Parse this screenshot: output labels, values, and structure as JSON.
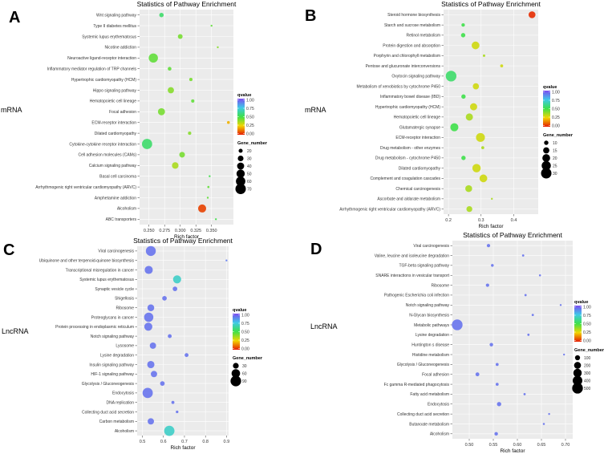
{
  "colorbar": {
    "low": "#e51c00",
    "mid1": "#f2d600",
    "mid2": "#3ee04a",
    "mid3": "#3fc9e8",
    "high": "#7b4cf0"
  },
  "colors": {
    "panel_bg": "#ebebeb",
    "grid": "#ffffff",
    "text": "#333333"
  },
  "chart_data": [
    {
      "panel": "A",
      "type": "scatter",
      "title": "Statistics of Pathway Enrichment",
      "side_label": "mRNA",
      "xlabel": "Rich factor",
      "xlim": [
        0.235,
        0.385
      ],
      "xticks": [
        0.25,
        0.275,
        0.3,
        0.325,
        0.35
      ],
      "xtick_labels": [
        "0.250",
        "0.275",
        "0.300",
        "0.325",
        "0.350"
      ],
      "qvalue_title": "qvalue",
      "qvalue_ticks": [
        "1.00",
        "0.75",
        "0.50",
        "0.25",
        "0.00"
      ],
      "size_title": "Gene_number",
      "size_legend": [
        20,
        30,
        40,
        50,
        60,
        70
      ],
      "size_range": [
        10,
        75
      ],
      "points": [
        {
          "term": "Wnt signaling pathway",
          "x": 0.27,
          "q": 0.55,
          "n": 22
        },
        {
          "term": "Type II diabetes mellitus",
          "x": 0.35,
          "q": 0.45,
          "n": 10
        },
        {
          "term": "Systemic lupus erythematosus",
          "x": 0.3,
          "q": 0.42,
          "n": 24
        },
        {
          "term": "Nicotine addiction",
          "x": 0.36,
          "q": 0.4,
          "n": 10
        },
        {
          "term": "Neuroactive ligand-receptor interaction",
          "x": 0.257,
          "q": 0.45,
          "n": 58
        },
        {
          "term": "Inflammatory mediator regulation of TRP channels",
          "x": 0.283,
          "q": 0.45,
          "n": 18
        },
        {
          "term": "Hypertrophic cardiomyopathy (HCM)",
          "x": 0.317,
          "q": 0.42,
          "n": 16
        },
        {
          "term": "Hippo signaling pathway",
          "x": 0.285,
          "q": 0.4,
          "n": 34
        },
        {
          "term": "Hematopoietic cell lineage",
          "x": 0.32,
          "q": 0.45,
          "n": 16
        },
        {
          "term": "Focal adhesion",
          "x": 0.27,
          "q": 0.42,
          "n": 40
        },
        {
          "term": "ECM-receptor interaction",
          "x": 0.377,
          "q": 0.2,
          "n": 14
        },
        {
          "term": "Dilated cardiomyopathy",
          "x": 0.315,
          "q": 0.4,
          "n": 16
        },
        {
          "term": "Cytokine-cytokine receptor interaction",
          "x": 0.247,
          "q": 0.55,
          "n": 68
        },
        {
          "term": "Cell adhesion molecules (CAMs)",
          "x": 0.303,
          "q": 0.42,
          "n": 30
        },
        {
          "term": "Calcium signaling pathway",
          "x": 0.292,
          "q": 0.35,
          "n": 36
        },
        {
          "term": "Basal cell carcinoma",
          "x": 0.347,
          "q": 0.5,
          "n": 10
        },
        {
          "term": "Arrhythmogenic right ventricular cardiomyopathy (ARVC)",
          "x": 0.345,
          "q": 0.45,
          "n": 11
        },
        {
          "term": "Amphetamine addiction",
          "x": 0.344,
          "q": 0.45,
          "n": 10
        },
        {
          "term": "Alcoholism",
          "x": 0.335,
          "q": 0.05,
          "n": 48
        },
        {
          "term": "ABC transporters",
          "x": 0.357,
          "q": 0.5,
          "n": 10
        }
      ]
    },
    {
      "panel": "B",
      "type": "scatter",
      "title": "Statistics of Pathway Enrichment",
      "side_label": "mRNA",
      "xlabel": "Rich factor",
      "xlim": [
        0.185,
        0.475
      ],
      "xticks": [
        0.2,
        0.3,
        0.4
      ],
      "xtick_labels": [
        "0.2",
        "0.3",
        "0.4"
      ],
      "qvalue_title": "qvalue",
      "qvalue_ticks": [
        "1.00",
        "0.75",
        "0.50",
        "0.25",
        "0.00"
      ],
      "size_title": "Gene_number",
      "size_legend": [
        10,
        15,
        20,
        25,
        30
      ],
      "size_range": [
        5,
        32
      ],
      "points": [
        {
          "term": "Steroid hormone biosynthesis",
          "x": 0.456,
          "q": 0.02,
          "n": 17
        },
        {
          "term": "Starch and sucrose metabolism",
          "x": 0.245,
          "q": 0.5,
          "n": 8
        },
        {
          "term": "Retinol metabolism",
          "x": 0.245,
          "q": 0.5,
          "n": 10
        },
        {
          "term": "Protein digestion and absorption",
          "x": 0.283,
          "q": 0.3,
          "n": 20
        },
        {
          "term": "Porphyrin and chlorophyll metabolism",
          "x": 0.309,
          "q": 0.35,
          "n": 6
        },
        {
          "term": "Pentose and glucuronate interconversions",
          "x": 0.363,
          "q": 0.3,
          "n": 7
        },
        {
          "term": "Oxytocin signaling pathway",
          "x": 0.208,
          "q": 0.55,
          "n": 31
        },
        {
          "term": "Metabolism of xenobiotics by cytochrome P450",
          "x": 0.284,
          "q": 0.3,
          "n": 15
        },
        {
          "term": "Inflammatory bowel disease (IBD)",
          "x": 0.246,
          "q": 0.5,
          "n": 10
        },
        {
          "term": "Hypertrophic cardiomyopathy (HCM)",
          "x": 0.277,
          "q": 0.3,
          "n": 18
        },
        {
          "term": "Hematopoietic cell lineage",
          "x": 0.264,
          "q": 0.35,
          "n": 18
        },
        {
          "term": "Glutamatergic synapse",
          "x": 0.218,
          "q": 0.5,
          "n": 21
        },
        {
          "term": "ECM-receptor interaction",
          "x": 0.298,
          "q": 0.3,
          "n": 24
        },
        {
          "term": "Drug metabolism - other enzymes",
          "x": 0.305,
          "q": 0.35,
          "n": 7
        },
        {
          "term": "Drug metabolism - cytochrome P450",
          "x": 0.246,
          "q": 0.5,
          "n": 10
        },
        {
          "term": "Dilated cardiomyopathy",
          "x": 0.286,
          "q": 0.3,
          "n": 22
        },
        {
          "term": "Complement and coagulation cascades",
          "x": 0.307,
          "q": 0.3,
          "n": 20
        },
        {
          "term": "Chemical carcinogenesis",
          "x": 0.262,
          "q": 0.35,
          "n": 17
        },
        {
          "term": "Ascorbate and aldarate metabolism",
          "x": 0.333,
          "q": 0.35,
          "n": 5
        },
        {
          "term": "Arrhythmogenic right ventricular cardiomyopathy (ARVC)",
          "x": 0.264,
          "q": 0.35,
          "n": 14
        }
      ]
    },
    {
      "panel": "C",
      "type": "scatter",
      "title": "Statistics of Pathway Enrichment",
      "side_label": "LncRNA",
      "xlabel": "Rich factor",
      "xlim": [
        0.475,
        0.91
      ],
      "xticks": [
        0.5,
        0.6,
        0.7,
        0.8,
        0.9
      ],
      "xtick_labels": [
        "0.5",
        "0.6",
        "0.7",
        "0.8",
        "0.9"
      ],
      "qvalue_title": "qvalue",
      "qvalue_ticks": [
        "1.00",
        "0.75",
        "0.50",
        "0.25",
        "0.00"
      ],
      "size_title": "Gene_number",
      "size_legend": [
        30,
        60,
        90
      ],
      "size_range": [
        5,
        95
      ],
      "points": [
        {
          "term": "Viral carcinogenesis",
          "x": 0.54,
          "q": 0.92,
          "n": 80
        },
        {
          "term": "Ubiquinone and other terpenoid-quinone biosynthesis",
          "x": 0.9,
          "q": 0.9,
          "n": 5
        },
        {
          "term": "Transcriptional misregulation in cancer",
          "x": 0.53,
          "q": 0.92,
          "n": 55
        },
        {
          "term": "Systemic lupus erythematosus",
          "x": 0.665,
          "q": 0.7,
          "n": 55
        },
        {
          "term": "Synaptic vesicle cycle",
          "x": 0.655,
          "q": 0.92,
          "n": 20
        },
        {
          "term": "Shigellosis",
          "x": 0.605,
          "q": 0.92,
          "n": 20
        },
        {
          "term": "Ribosome",
          "x": 0.54,
          "q": 0.92,
          "n": 40
        },
        {
          "term": "Proteoglycans in cancer",
          "x": 0.53,
          "q": 0.92,
          "n": 70
        },
        {
          "term": "Protein processing in endoplasmic reticulum",
          "x": 0.528,
          "q": 0.92,
          "n": 55
        },
        {
          "term": "Notch signaling pathway",
          "x": 0.63,
          "q": 0.92,
          "n": 15
        },
        {
          "term": "Lysosome",
          "x": 0.55,
          "q": 0.92,
          "n": 35
        },
        {
          "term": "Lysine degradation",
          "x": 0.71,
          "q": 0.92,
          "n": 15
        },
        {
          "term": "Insulin signaling pathway",
          "x": 0.54,
          "q": 0.92,
          "n": 45
        },
        {
          "term": "HIF-1 signaling pathway",
          "x": 0.555,
          "q": 0.92,
          "n": 35
        },
        {
          "term": "Glycolysis / Gluconeogenesis",
          "x": 0.595,
          "q": 0.92,
          "n": 20
        },
        {
          "term": "Endocytosis",
          "x": 0.525,
          "q": 0.92,
          "n": 85
        },
        {
          "term": "DNA replication",
          "x": 0.645,
          "q": 0.92,
          "n": 10
        },
        {
          "term": "Collecting duct acid secretion",
          "x": 0.665,
          "q": 0.92,
          "n": 8
        },
        {
          "term": "Carbon metabolism",
          "x": 0.54,
          "q": 0.92,
          "n": 35
        },
        {
          "term": "Alcoholism",
          "x": 0.628,
          "q": 0.7,
          "n": 85
        }
      ]
    },
    {
      "panel": "D",
      "type": "scatter",
      "title": "Statistics of Pathway Enrichment",
      "side_label": "LncRNA",
      "xlabel": "Rich factor",
      "xlim": [
        0.465,
        0.715
      ],
      "xticks": [
        0.5,
        0.55,
        0.6,
        0.65,
        0.7
      ],
      "xtick_labels": [
        "0.50",
        "0.55",
        "0.60",
        "0.65",
        "0.70"
      ],
      "qvalue_title": "qvalue",
      "qvalue_ticks": [
        "1.00",
        "0.75",
        "0.50",
        "0.25",
        "0.00"
      ],
      "size_title": "Gene_number",
      "size_legend": [
        100,
        200,
        300,
        400,
        500
      ],
      "size_range": [
        10,
        520
      ],
      "points": [
        {
          "term": "Viral carcinogenesis",
          "x": 0.54,
          "q": 0.92,
          "n": 40
        },
        {
          "term": "Valine, leucine and isoleucine degradation",
          "x": 0.612,
          "q": 0.92,
          "n": 15
        },
        {
          "term": "TGF-beta signaling pathway",
          "x": 0.548,
          "q": 0.92,
          "n": 25
        },
        {
          "term": "SNARE interactions in vesicular transport",
          "x": 0.647,
          "q": 0.92,
          "n": 12
        },
        {
          "term": "Ribosome",
          "x": 0.538,
          "q": 0.92,
          "n": 40
        },
        {
          "term": "Pathogenic Escherichia coli infection",
          "x": 0.617,
          "q": 0.92,
          "n": 15
        },
        {
          "term": "Notch signaling pathway",
          "x": 0.69,
          "q": 0.92,
          "n": 10
        },
        {
          "term": "N-Glycan biosynthesis",
          "x": 0.632,
          "q": 0.92,
          "n": 15
        },
        {
          "term": "Metabolic pathways",
          "x": 0.475,
          "q": 0.92,
          "n": 500
        },
        {
          "term": "Lysine degradation",
          "x": 0.623,
          "q": 0.92,
          "n": 15
        },
        {
          "term": "Huntington s disease",
          "x": 0.546,
          "q": 0.92,
          "n": 45
        },
        {
          "term": "Histidine metabolism",
          "x": 0.697,
          "q": 0.92,
          "n": 8
        },
        {
          "term": "Glycolysis / Gluconeogenesis",
          "x": 0.558,
          "q": 0.92,
          "n": 30
        },
        {
          "term": "Focal adhesion",
          "x": 0.517,
          "q": 0.92,
          "n": 55
        },
        {
          "term": "Fc gamma R-mediated phagocytosis",
          "x": 0.558,
          "q": 0.92,
          "n": 30
        },
        {
          "term": "Fatty acid metabolism",
          "x": 0.615,
          "q": 0.92,
          "n": 15
        },
        {
          "term": "Endocytosis",
          "x": 0.562,
          "q": 0.92,
          "n": 70
        },
        {
          "term": "Collecting duct acid secretion",
          "x": 0.666,
          "q": 0.92,
          "n": 10
        },
        {
          "term": "Butanoate metabolism",
          "x": 0.655,
          "q": 0.92,
          "n": 12
        },
        {
          "term": "Alcoholism",
          "x": 0.556,
          "q": 0.92,
          "n": 45
        }
      ]
    }
  ]
}
